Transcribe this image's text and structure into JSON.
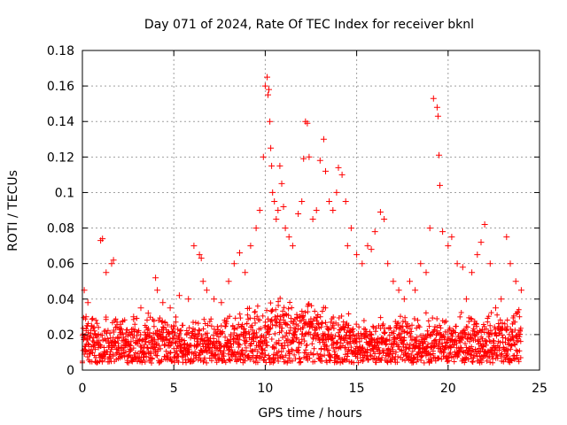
{
  "chart_data": {
    "type": "scatter",
    "title": "Day 071 of 2024, Rate Of TEC Index for receiver bknl",
    "xlabel": "GPS time / hours",
    "ylabel": "ROTI / TECUs",
    "xlim": [
      0,
      25
    ],
    "ylim": [
      0,
      0.18
    ],
    "xticks": [
      0,
      5,
      10,
      15,
      20,
      25
    ],
    "xtick_labels": [
      "0",
      "5",
      "10",
      "15",
      "20",
      "25"
    ],
    "yticks": [
      0,
      0.02,
      0.04,
      0.06,
      0.08,
      0.1,
      0.12,
      0.14,
      0.16,
      0.18
    ],
    "ytick_labels": [
      "0",
      "0.02",
      "0.04",
      "0.06",
      "0.08",
      "0.1",
      "0.12",
      "0.14",
      "0.16",
      "0.18"
    ],
    "grid": true,
    "marker": "plus",
    "color": "#ff0000",
    "series": [
      {
        "name": "ROTI",
        "x": [
          0.1,
          0.2,
          0.3,
          0.5,
          0.7,
          1.0,
          1.1,
          1.3,
          1.6,
          1.7,
          1.9,
          2.1,
          2.4,
          2.8,
          3.2,
          3.6,
          4.0,
          4.1,
          4.4,
          4.8,
          5.0,
          5.3,
          5.8,
          6.1,
          6.4,
          6.5,
          6.6,
          6.8,
          7.2,
          7.6,
          8.0,
          8.3,
          8.6,
          8.9,
          9.2,
          9.5,
          9.7,
          9.9,
          10.0,
          10.1,
          10.15,
          10.2,
          10.25,
          10.3,
          10.35,
          10.4,
          10.5,
          10.6,
          10.7,
          10.8,
          10.9,
          11.0,
          11.1,
          11.3,
          11.5,
          11.8,
          12.0,
          12.1,
          12.2,
          12.3,
          12.4,
          12.6,
          12.8,
          13.0,
          13.2,
          13.3,
          13.5,
          13.7,
          13.9,
          14.0,
          14.2,
          14.4,
          14.5,
          14.7,
          15.0,
          15.3,
          15.6,
          15.8,
          16.0,
          16.3,
          16.5,
          16.7,
          17.0,
          17.3,
          17.6,
          17.9,
          18.2,
          18.5,
          18.8,
          19.0,
          19.2,
          19.4,
          19.45,
          19.5,
          19.55,
          19.7,
          20.0,
          20.2,
          20.5,
          20.8,
          21.0,
          21.3,
          21.6,
          21.8,
          22.0,
          22.3,
          22.6,
          22.9,
          23.2,
          23.4,
          23.7,
          24.0
        ],
        "y": [
          0.045,
          0.03,
          0.038,
          0.025,
          0.02,
          0.073,
          0.074,
          0.055,
          0.06,
          0.062,
          0.027,
          0.02,
          0.015,
          0.03,
          0.035,
          0.032,
          0.052,
          0.045,
          0.038,
          0.035,
          0.025,
          0.042,
          0.04,
          0.07,
          0.065,
          0.063,
          0.05,
          0.045,
          0.04,
          0.038,
          0.05,
          0.06,
          0.066,
          0.055,
          0.07,
          0.08,
          0.09,
          0.12,
          0.16,
          0.165,
          0.155,
          0.158,
          0.14,
          0.125,
          0.115,
          0.1,
          0.095,
          0.085,
          0.09,
          0.115,
          0.105,
          0.092,
          0.08,
          0.075,
          0.07,
          0.088,
          0.095,
          0.119,
          0.14,
          0.139,
          0.12,
          0.085,
          0.09,
          0.118,
          0.13,
          0.112,
          0.095,
          0.09,
          0.1,
          0.114,
          0.11,
          0.095,
          0.07,
          0.08,
          0.065,
          0.06,
          0.07,
          0.068,
          0.078,
          0.089,
          0.085,
          0.06,
          0.05,
          0.045,
          0.04,
          0.05,
          0.045,
          0.06,
          0.055,
          0.08,
          0.153,
          0.148,
          0.143,
          0.121,
          0.104,
          0.078,
          0.07,
          0.075,
          0.06,
          0.058,
          0.04,
          0.055,
          0.065,
          0.072,
          0.082,
          0.06,
          0.035,
          0.04,
          0.075,
          0.06,
          0.05,
          0.045
        ]
      }
    ]
  }
}
